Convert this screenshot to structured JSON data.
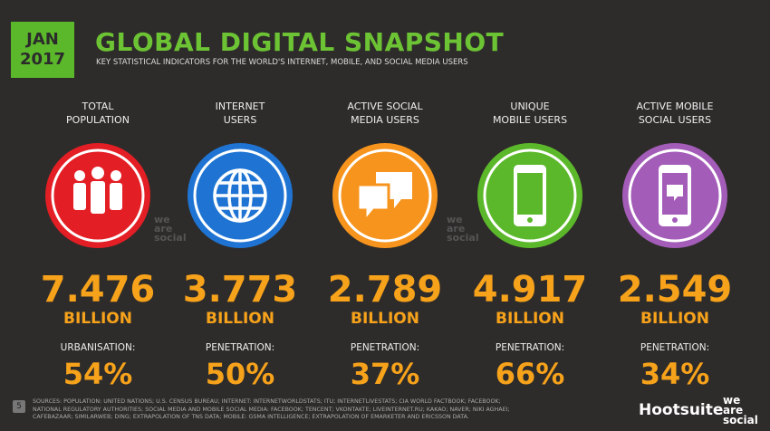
{
  "header": {
    "date_line1": "JAN",
    "date_line2": "2017",
    "title": "GLOBAL DIGITAL SNAPSHOT",
    "subtitle": "KEY STATISTICAL INDICATORS FOR THE WORLD'S INTERNET, MOBILE, AND SOCIAL MEDIA USERS"
  },
  "columns": [
    {
      "label_line1": "TOTAL",
      "label_line2": "POPULATION",
      "value": "7.476",
      "unit": "BILLION",
      "sub_label": "URBANISATION:",
      "sub_value": "54%"
    },
    {
      "label_line1": "INTERNET",
      "label_line2": "USERS",
      "value": "3.773",
      "unit": "BILLION",
      "sub_label": "PENETRATION:",
      "sub_value": "50%"
    },
    {
      "label_line1": "ACTIVE SOCIAL",
      "label_line2": "MEDIA USERS",
      "value": "2.789",
      "unit": "BILLION",
      "sub_label": "PENETRATION:",
      "sub_value": "37%"
    },
    {
      "label_line1": "UNIQUE",
      "label_line2": "MOBILE USERS",
      "value": "4.917",
      "unit": "BILLION",
      "sub_label": "PENETRATION:",
      "sub_value": "66%"
    },
    {
      "label_line1": "ACTIVE MOBILE",
      "label_line2": "SOCIAL USERS",
      "value": "2.549",
      "unit": "BILLION",
      "sub_label": "PENETRATION:",
      "sub_value": "34%"
    }
  ],
  "watermark": {
    "line1": "we",
    "line2": "are",
    "line3": "social"
  },
  "footer": {
    "page": "5",
    "sources": "SOURCES: POPULATION: UNITED NATIONS; U.S. CENSUS BUREAU; INTERNET: INTERNETWORLDSTATS; ITU; INTERNETLIVESTATS; CIA WORLD FACTBOOK; FACEBOOK; NATIONAL REGULATORY AUTHORITIES; SOCIAL MEDIA AND MOBILE SOCIAL MEDIA: FACEBOOK; TENCENT; VKONTAKTE; LIVEINTERNET.RU; KAKAO; NAVER; NIKI AGHAEI; CAFEBAZAAR; SIMILARWEB; DING; EXTRAPOLATION OF TNS DATA; MOBILE: GSMA INTELLIGENCE; EXTRAPOLATION OF EMARKETER AND ERICSSON DATA.",
    "brand": "Hootsuite",
    "brand2_line1": "we",
    "brand2_line2": "are",
    "brand2_line3": "social"
  }
}
